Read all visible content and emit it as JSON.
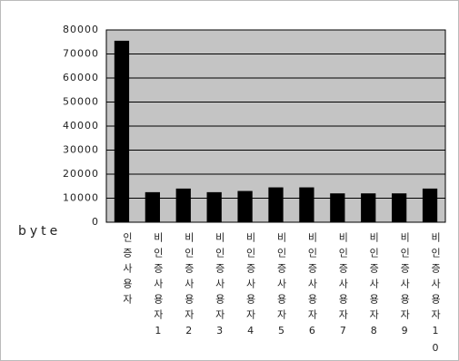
{
  "chart_data": {
    "type": "bar",
    "y_label": "byte",
    "categories": [
      "인증사용자",
      "비인증사용자1",
      "비인증사용자2",
      "비인증사용자3",
      "비인증사용자4",
      "비인증사용자5",
      "비인증사용자6",
      "비인증사용자7",
      "비인증사용자8",
      "비인증사용자9",
      "비인증사용자10"
    ],
    "values": [
      75500,
      12500,
      14000,
      12500,
      13000,
      14500,
      14500,
      12000,
      12000,
      12000,
      14000
    ],
    "color": "#000000",
    "plot_background": "#c4c4c4",
    "ylim": [
      0,
      80000
    ],
    "yticks": [
      0,
      10000,
      20000,
      30000,
      40000,
      50000,
      60000,
      70000,
      80000
    ],
    "grid": true
  }
}
